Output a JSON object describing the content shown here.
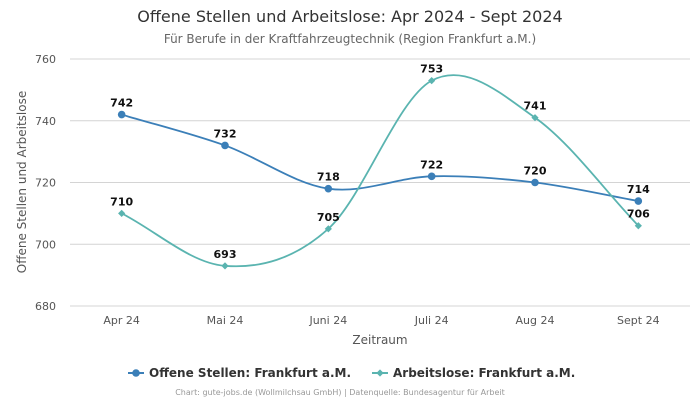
{
  "chart_data": {
    "type": "line",
    "title": "Offene Stellen und Arbeitslose: Apr 2024 - Sept 2024",
    "subtitle": "Für Berufe in der Kraftfahrzeugtechnik (Region Frankfurt a.M.)",
    "xlabel": "Zeitraum",
    "ylabel": "Offene Stellen und Arbeitslose",
    "categories": [
      "Apr 24",
      "Mai 24",
      "Juni 24",
      "Juli 24",
      "Aug 24",
      "Sept 24"
    ],
    "ylim": [
      680,
      760
    ],
    "yticks": [
      680,
      700,
      720,
      740,
      760
    ],
    "grid": true,
    "legend_position": "bottom",
    "series": [
      {
        "name": "Offene Stellen: Frankfurt a.M.",
        "values": [
          742,
          732,
          718,
          722,
          720,
          714
        ],
        "color": "#3b7fb8",
        "marker": "circle"
      },
      {
        "name": "Arbeitslose: Frankfurt a.M.",
        "values": [
          710,
          693,
          705,
          753,
          741,
          706
        ],
        "color": "#5ab4b0",
        "marker": "diamond"
      }
    ],
    "credit": "Chart: gute-jobs.de (Wollmilchsau GmbH) | Datenquelle: Bundesagentur für Arbeit"
  }
}
